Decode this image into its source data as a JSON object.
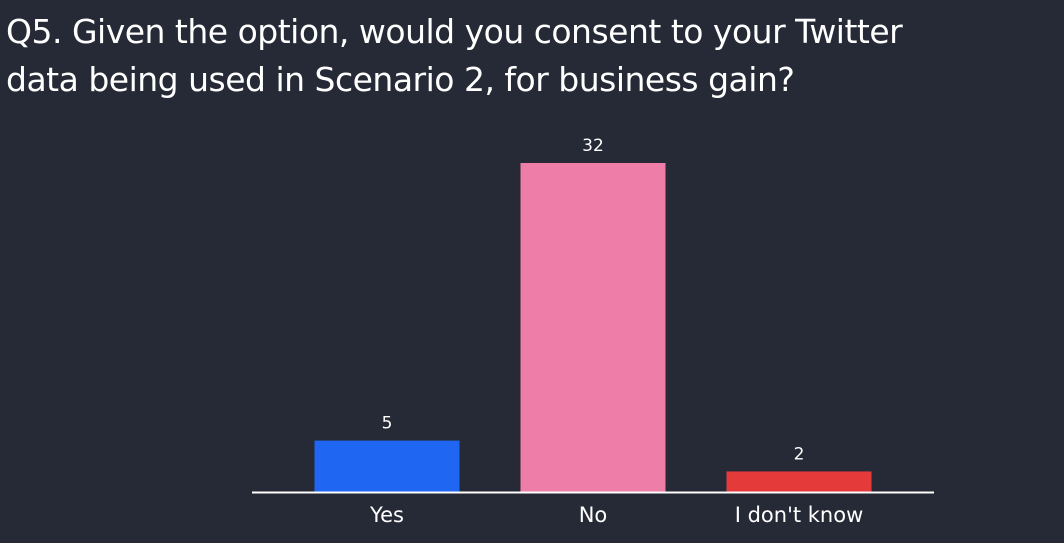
{
  "title_lines": [
    "Q5. Given the option, would you consent to your Twitter",
    "data being used in Scenario 2, for business gain?"
  ],
  "colors": {
    "background": "#262a36",
    "axis": "#ffffff",
    "text": "#ffffff"
  },
  "chart_data": {
    "type": "bar",
    "title": "Q5. Given the option, would you consent to your Twitter data being used in Scenario 2, for business gain?",
    "categories": [
      "Yes",
      "No",
      "I don't know"
    ],
    "values": [
      5,
      32,
      2
    ],
    "data_labels": [
      "5",
      "32",
      "2"
    ],
    "bar_colors": [
      "#1f67f2",
      "#ee7ea8",
      "#e43a3a"
    ],
    "xlabel": "",
    "ylabel": "",
    "ylim": [
      0,
      32
    ],
    "grid": false,
    "legend": "none"
  }
}
